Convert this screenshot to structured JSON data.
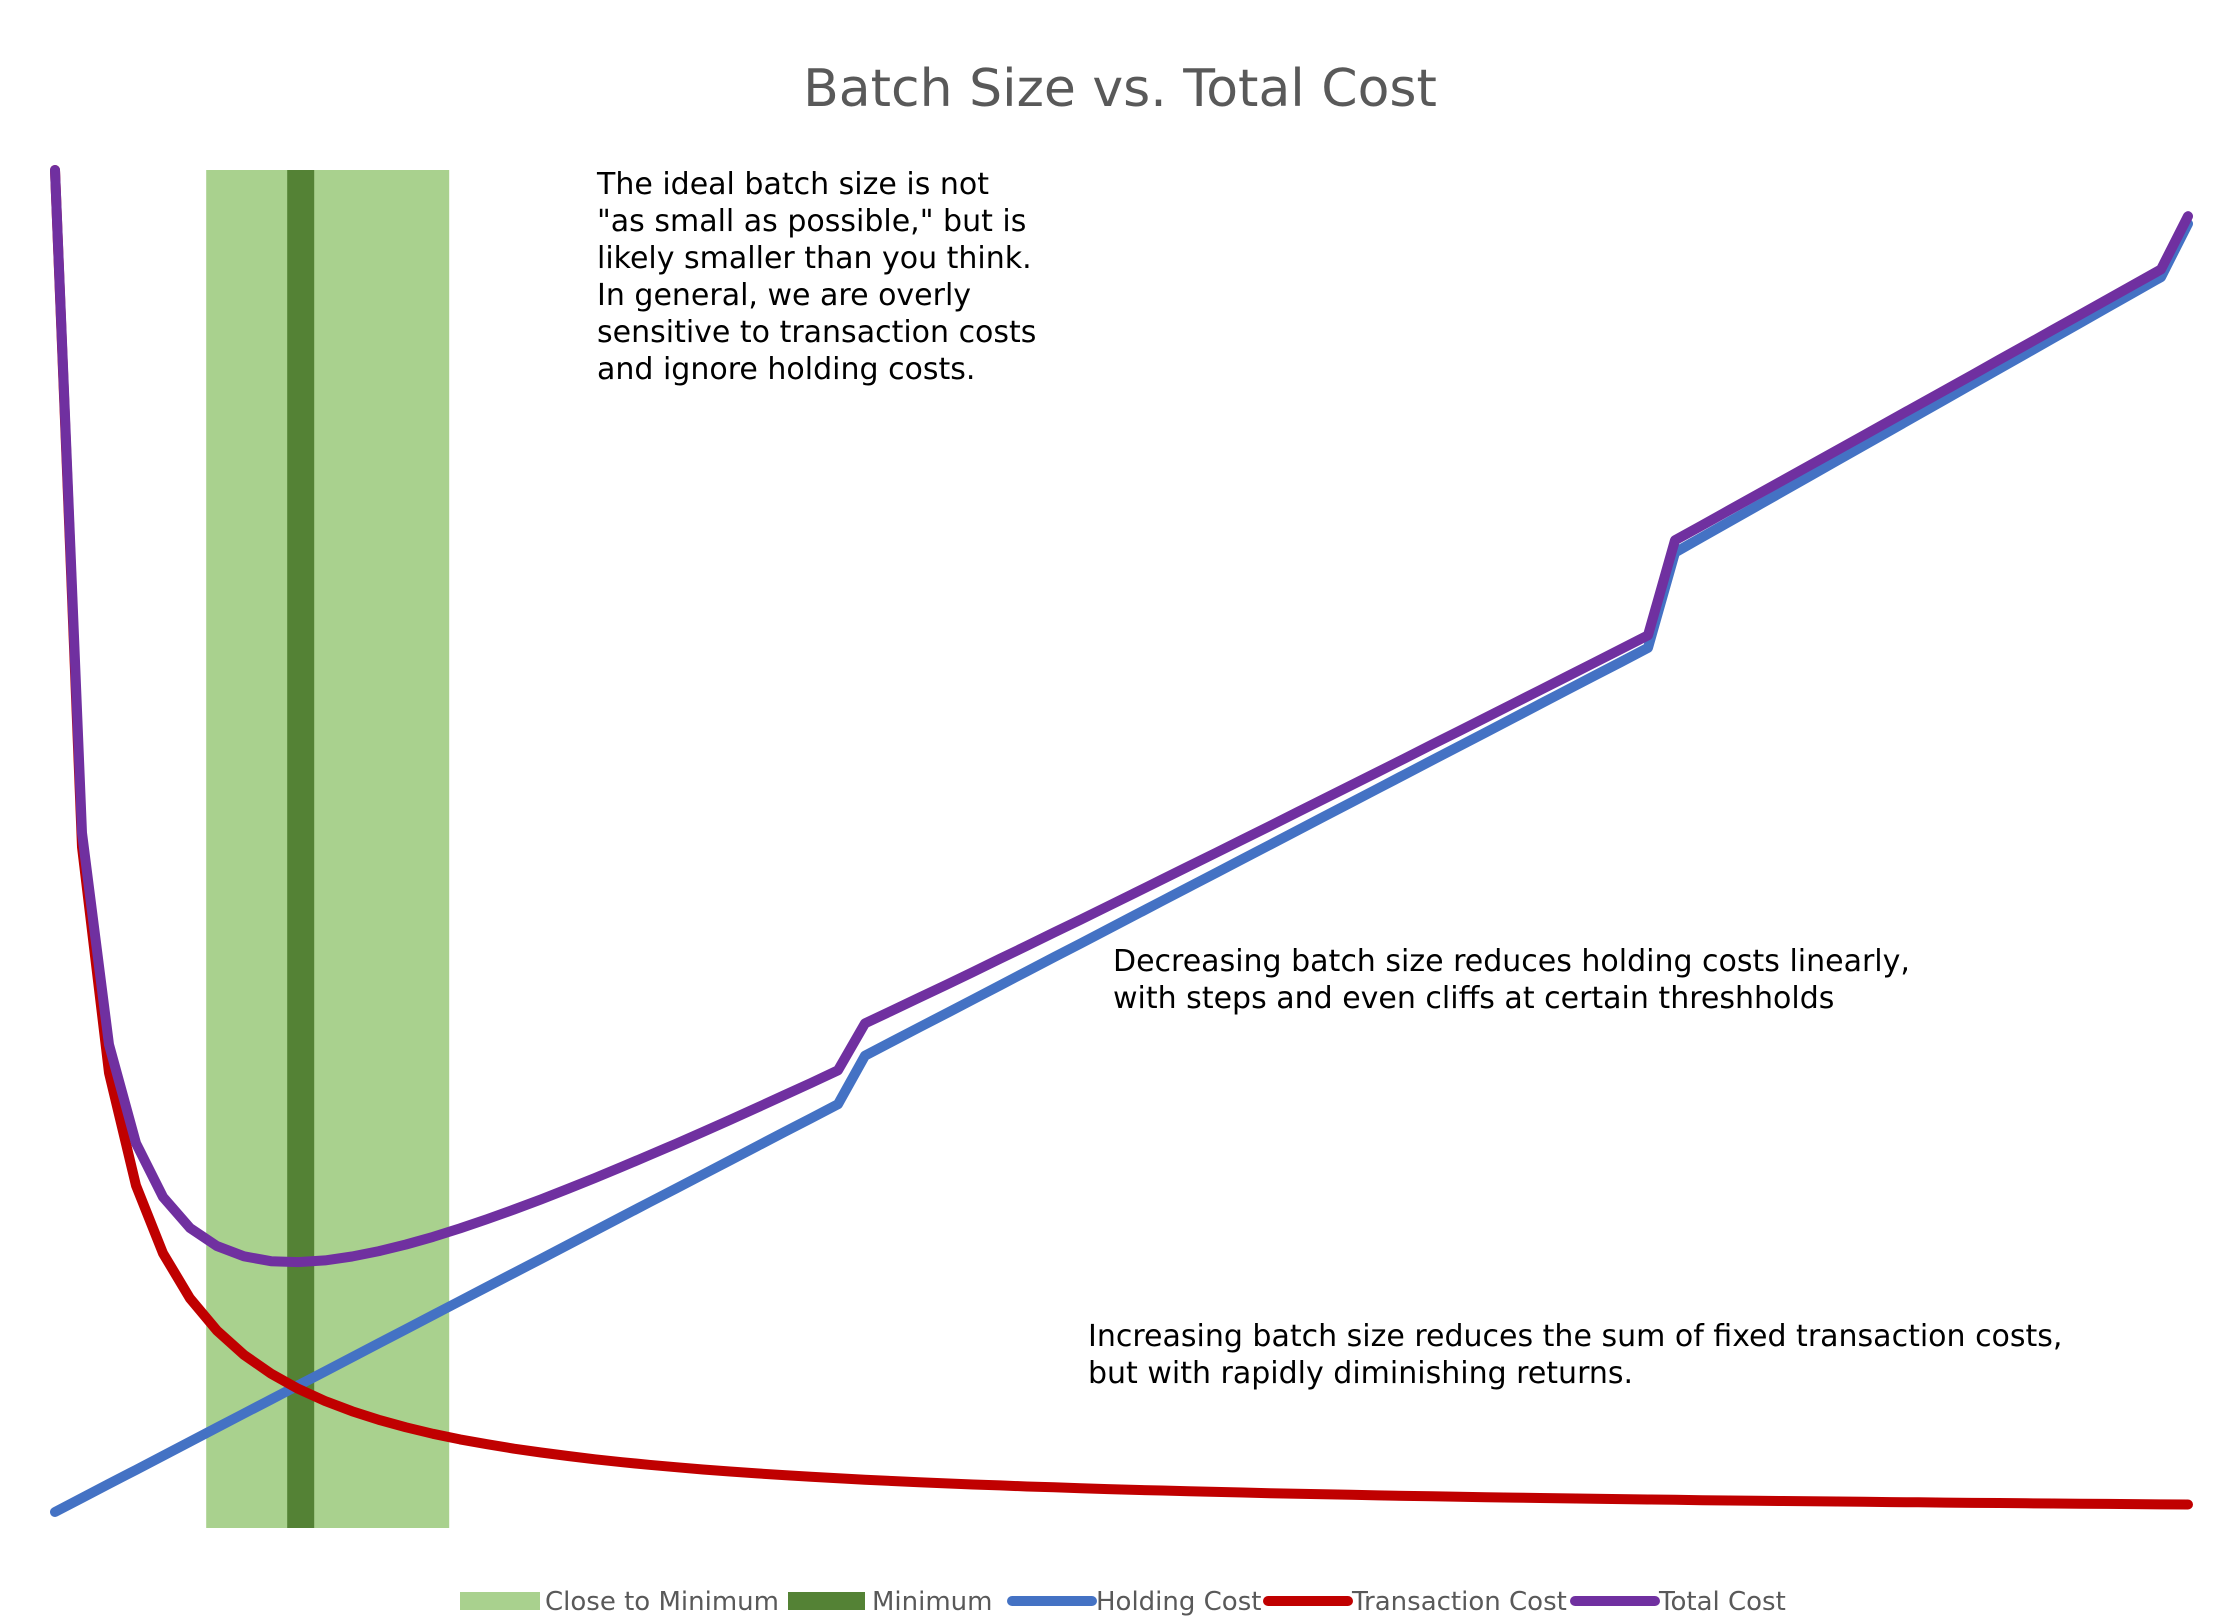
{
  "chart_data": {
    "type": "line",
    "title": "Batch Size vs. Total Cost",
    "xlabel": "",
    "ylabel": "",
    "xlim": [
      1,
      80
    ],
    "ylim": [
      0,
      100
    ],
    "grid": false,
    "axes_visible": false,
    "legend_placement": "bottom",
    "x": [
      1,
      2,
      3,
      4,
      5,
      6,
      7,
      8,
      9,
      10,
      11,
      12,
      13,
      14,
      15,
      16,
      17,
      18,
      19,
      20,
      21,
      22,
      23,
      24,
      25,
      26,
      27,
      28,
      29,
      30,
      31,
      32,
      33,
      34,
      35,
      36,
      37,
      38,
      39,
      40,
      41,
      42,
      43,
      44,
      45,
      46,
      47,
      48,
      49,
      50,
      51,
      52,
      53,
      54,
      55,
      56,
      57,
      58,
      59,
      60,
      61,
      62,
      63,
      64,
      65,
      66,
      67,
      68,
      69,
      70,
      71,
      72,
      73,
      74,
      75,
      76,
      77,
      78,
      79,
      80
    ],
    "series": [
      {
        "name": "Holding Cost",
        "color": "#4472C4",
        "values": [
          0.0,
          1.05,
          2.1,
          3.14,
          4.19,
          5.24,
          6.29,
          7.34,
          8.38,
          9.43,
          10.48,
          11.53,
          12.58,
          13.62,
          14.67,
          15.72,
          16.77,
          17.82,
          18.86,
          19.91,
          20.96,
          22.01,
          23.06,
          24.1,
          25.15,
          26.2,
          27.25,
          28.3,
          29.34,
          30.39,
          34.0,
          35.05,
          36.1,
          37.14,
          38.19,
          39.24,
          40.29,
          41.34,
          42.38,
          43.43,
          44.48,
          45.53,
          46.58,
          47.62,
          48.67,
          49.72,
          50.77,
          51.82,
          52.86,
          53.91,
          54.96,
          56.01,
          57.06,
          58.1,
          59.15,
          60.2,
          61.25,
          62.3,
          63.34,
          64.4,
          71.5,
          72.64,
          73.78,
          74.92,
          76.06,
          77.2,
          78.34,
          79.48,
          80.62,
          81.76,
          82.9,
          84.04,
          85.18,
          86.32,
          87.46,
          88.6,
          89.74,
          90.88,
          92.02,
          96.0
        ]
      },
      {
        "name": "Transaction Cost",
        "color": "#C00000",
        "values": [
          100.0,
          49.55,
          32.73,
          24.33,
          19.28,
          15.92,
          13.52,
          11.71,
          10.31,
          9.19,
          8.27,
          7.51,
          6.86,
          6.31,
          5.83,
          5.41,
          5.05,
          4.72,
          4.43,
          4.17,
          3.93,
          3.71,
          3.52,
          3.34,
          3.17,
          3.02,
          2.88,
          2.75,
          2.63,
          2.52,
          2.41,
          2.31,
          2.22,
          2.13,
          2.05,
          1.98,
          1.9,
          1.84,
          1.77,
          1.71,
          1.65,
          1.6,
          1.55,
          1.5,
          1.45,
          1.4,
          1.36,
          1.32,
          1.28,
          1.24,
          1.2,
          1.17,
          1.13,
          1.1,
          1.07,
          1.04,
          1.01,
          0.98,
          0.96,
          0.93,
          0.91,
          0.88,
          0.86,
          0.84,
          0.82,
          0.8,
          0.78,
          0.76,
          0.74,
          0.72,
          0.7,
          0.68,
          0.67,
          0.65,
          0.63,
          0.62,
          0.6,
          0.59,
          0.57,
          0.56
        ]
      },
      {
        "name": "Total Cost",
        "color": "#7030A0",
        "values": [
          100.0,
          50.6,
          34.83,
          27.48,
          23.47,
          21.16,
          19.81,
          19.05,
          18.69,
          18.62,
          18.75,
          19.04,
          19.44,
          19.93,
          20.5,
          21.13,
          21.82,
          22.54,
          23.29,
          24.08,
          24.89,
          25.72,
          26.58,
          27.44,
          28.32,
          29.22,
          30.13,
          31.05,
          31.97,
          32.91,
          36.41,
          37.36,
          38.32,
          39.27,
          40.24,
          41.22,
          42.19,
          43.18,
          44.15,
          45.14,
          46.13,
          47.13,
          48.13,
          49.12,
          50.12,
          51.12,
          52.13,
          53.14,
          54.14,
          55.15,
          56.16,
          57.18,
          58.19,
          59.2,
          60.22,
          61.24,
          62.26,
          63.28,
          64.3,
          65.33,
          72.41,
          73.52,
          74.64,
          75.76,
          76.88,
          78.0,
          79.12,
          80.24,
          81.36,
          82.48,
          83.6,
          84.72,
          85.85,
          86.97,
          88.09,
          89.22,
          90.34,
          91.47,
          92.59,
          96.56
        ]
      }
    ],
    "bands": [
      {
        "name": "Close to Minimum",
        "color": "#A9D18E",
        "x_range": [
          6.6,
          15.6
        ]
      },
      {
        "name": "Minimum",
        "color": "#548235",
        "x_range": [
          9.6,
          10.6
        ]
      }
    ],
    "annotations": [
      {
        "lines": [
          "The ideal batch size is not",
          "\"as small as possible,\" but is",
          "likely smaller than you think.",
          "In general, we are overly",
          "sensitive to transaction costs",
          "and ignore holding costs."
        ]
      },
      {
        "lines": [
          "Decreasing batch size reduces holding costs linearly,",
          "with steps and even cliffs at certain threshholds"
        ]
      },
      {
        "lines": [
          "Increasing batch size reduces the sum of fixed transaction costs,",
          "but with rapidly diminishing returns."
        ]
      }
    ],
    "legend": [
      {
        "label": "Close to Minimum",
        "kind": "band",
        "color": "#A9D18E"
      },
      {
        "label": "Minimum",
        "kind": "band",
        "color": "#548235"
      },
      {
        "label": "Holding Cost",
        "kind": "line",
        "color": "#4472C4"
      },
      {
        "label": "Transaction Cost",
        "kind": "line",
        "color": "#C00000"
      },
      {
        "label": "Total Cost",
        "kind": "line",
        "color": "#7030A0"
      }
    ]
  }
}
